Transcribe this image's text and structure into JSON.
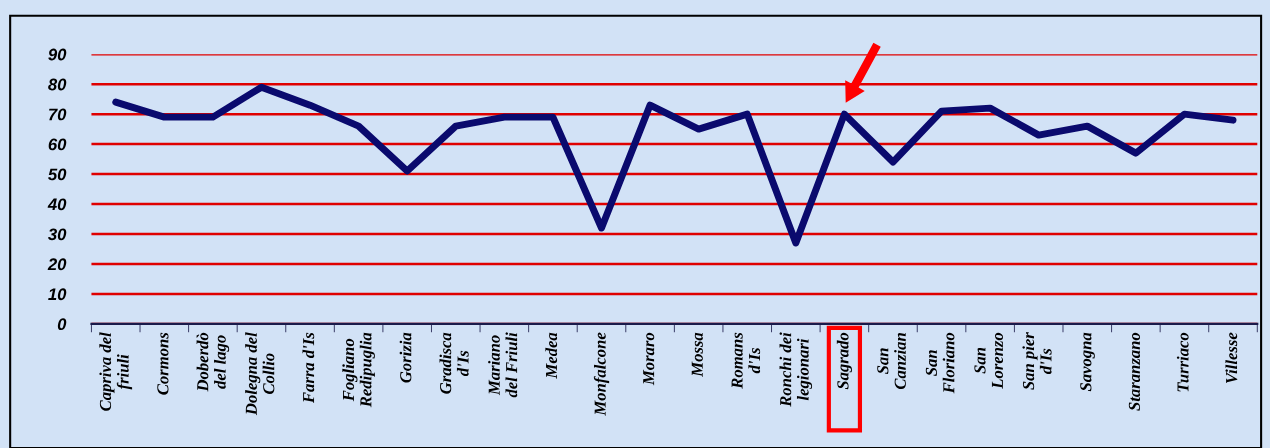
{
  "chart_data": {
    "type": "line",
    "categories": [
      "Capriva del\nfriuli",
      "Cormons",
      "Doberdò\ndel lago",
      "Dolegna del\nCollio",
      "Farra d'Is",
      "Fogliano\nRedipuglia",
      "Gorizia",
      "Gradisca\nd'Is",
      "Mariano\ndel Friuli",
      "Medea",
      "Monfalcone",
      "Moraro",
      "Mossa",
      "Romans\nd'Is",
      "Ronchi dei\nlegionari",
      "Sagrado",
      "San\nCanzian",
      "San\nFloriano",
      "San\nLorenzo",
      "San pier\nd'Is",
      "Savogna",
      "Staranzano",
      "Turriaco",
      "Villesse"
    ],
    "series": [
      {
        "color": "#0a0a6e",
        "values": [
          74,
          69,
          69,
          79,
          73,
          66,
          51,
          66,
          69,
          69,
          32,
          73,
          65,
          70,
          27,
          70,
          54,
          71,
          72,
          63,
          66,
          57,
          70,
          68
        ]
      }
    ],
    "ylim": [
      0,
      90
    ],
    "yticks": [
      0,
      10,
      20,
      30,
      40,
      50,
      60,
      70,
      80,
      90
    ],
    "grid": "y",
    "marker": "none",
    "line_style": "solid",
    "legend": false
  }
}
